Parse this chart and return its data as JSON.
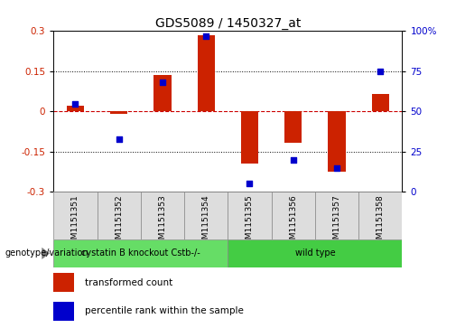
{
  "title": "GDS5089 / 1450327_at",
  "samples": [
    "GSM1151351",
    "GSM1151352",
    "GSM1151353",
    "GSM1151354",
    "GSM1151355",
    "GSM1151356",
    "GSM1151357",
    "GSM1151358"
  ],
  "transformed_count": [
    0.02,
    -0.01,
    0.135,
    0.285,
    -0.195,
    -0.115,
    -0.225,
    0.065
  ],
  "percentile_rank": [
    55,
    33,
    68,
    97,
    5,
    20,
    15,
    75
  ],
  "ylim_left": [
    -0.3,
    0.3
  ],
  "ylim_right": [
    0,
    100
  ],
  "yticks_left": [
    -0.3,
    -0.15,
    0,
    0.15,
    0.3
  ],
  "yticks_right": [
    0,
    25,
    50,
    75,
    100
  ],
  "ytick_labels_left": [
    "-0.3",
    "-0.15",
    "0",
    "0.15",
    "0.3"
  ],
  "ytick_labels_right": [
    "0",
    "25",
    "50",
    "75",
    "100%"
  ],
  "bar_color": "#cc2200",
  "dot_color": "#0000cc",
  "zero_line_color": "#cc0000",
  "grid_color": "#000000",
  "group1_label": "cystatin B knockout Cstb-/-",
  "group2_label": "wild type",
  "group1_count": 4,
  "group2_count": 4,
  "group1_color": "#66dd66",
  "group2_color": "#44cc44",
  "genotype_label": "genotype/variation",
  "legend1_label": "transformed count",
  "legend2_label": "percentile rank within the sample",
  "title_fontsize": 10,
  "tick_fontsize": 7.5,
  "label_fontsize": 6.5,
  "bar_width": 0.4
}
